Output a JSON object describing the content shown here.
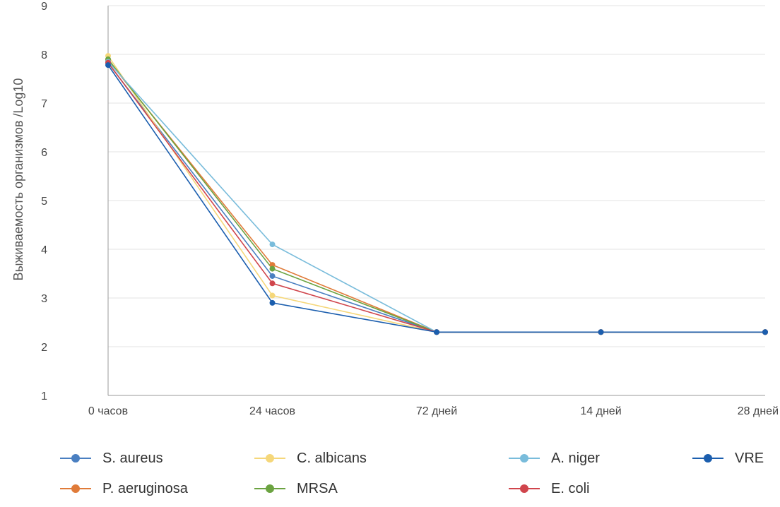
{
  "chart_data": {
    "type": "line",
    "categories": [
      "0 часов",
      "24 часов",
      "72 дней",
      "14 дней",
      "28 дней"
    ],
    "ylabel": "Выживаемость организмов /Log10",
    "xlabel": "",
    "title": "",
    "ylim": [
      1,
      9
    ],
    "yticks": [
      1,
      2,
      3,
      4,
      5,
      6,
      7,
      8,
      9
    ],
    "grid": true,
    "legend_position": "bottom",
    "series": [
      {
        "name": "S. aureus",
        "color": "#4A7FC1",
        "values": [
          7.82,
          3.45,
          2.3,
          2.3,
          2.3
        ]
      },
      {
        "name": "P. aeruginosa",
        "color": "#E07B39",
        "values": [
          7.88,
          3.68,
          2.3,
          2.3,
          2.3
        ]
      },
      {
        "name": "C. albicans",
        "color": "#F5D77A",
        "values": [
          7.97,
          3.05,
          2.3,
          2.3,
          2.3
        ]
      },
      {
        "name": "MRSA",
        "color": "#6BA341",
        "values": [
          7.9,
          3.6,
          2.3,
          2.3,
          2.3
        ]
      },
      {
        "name": "A. niger",
        "color": "#79BCDB",
        "values": [
          7.85,
          4.1,
          2.3,
          2.3,
          2.3
        ]
      },
      {
        "name": "E. coli",
        "color": "#D0454C",
        "values": [
          7.83,
          3.3,
          2.3,
          2.3,
          2.3
        ]
      },
      {
        "name": "VRE",
        "color": "#1B5EAE",
        "values": [
          7.78,
          2.9,
          2.3,
          2.3,
          2.3
        ]
      }
    ]
  }
}
